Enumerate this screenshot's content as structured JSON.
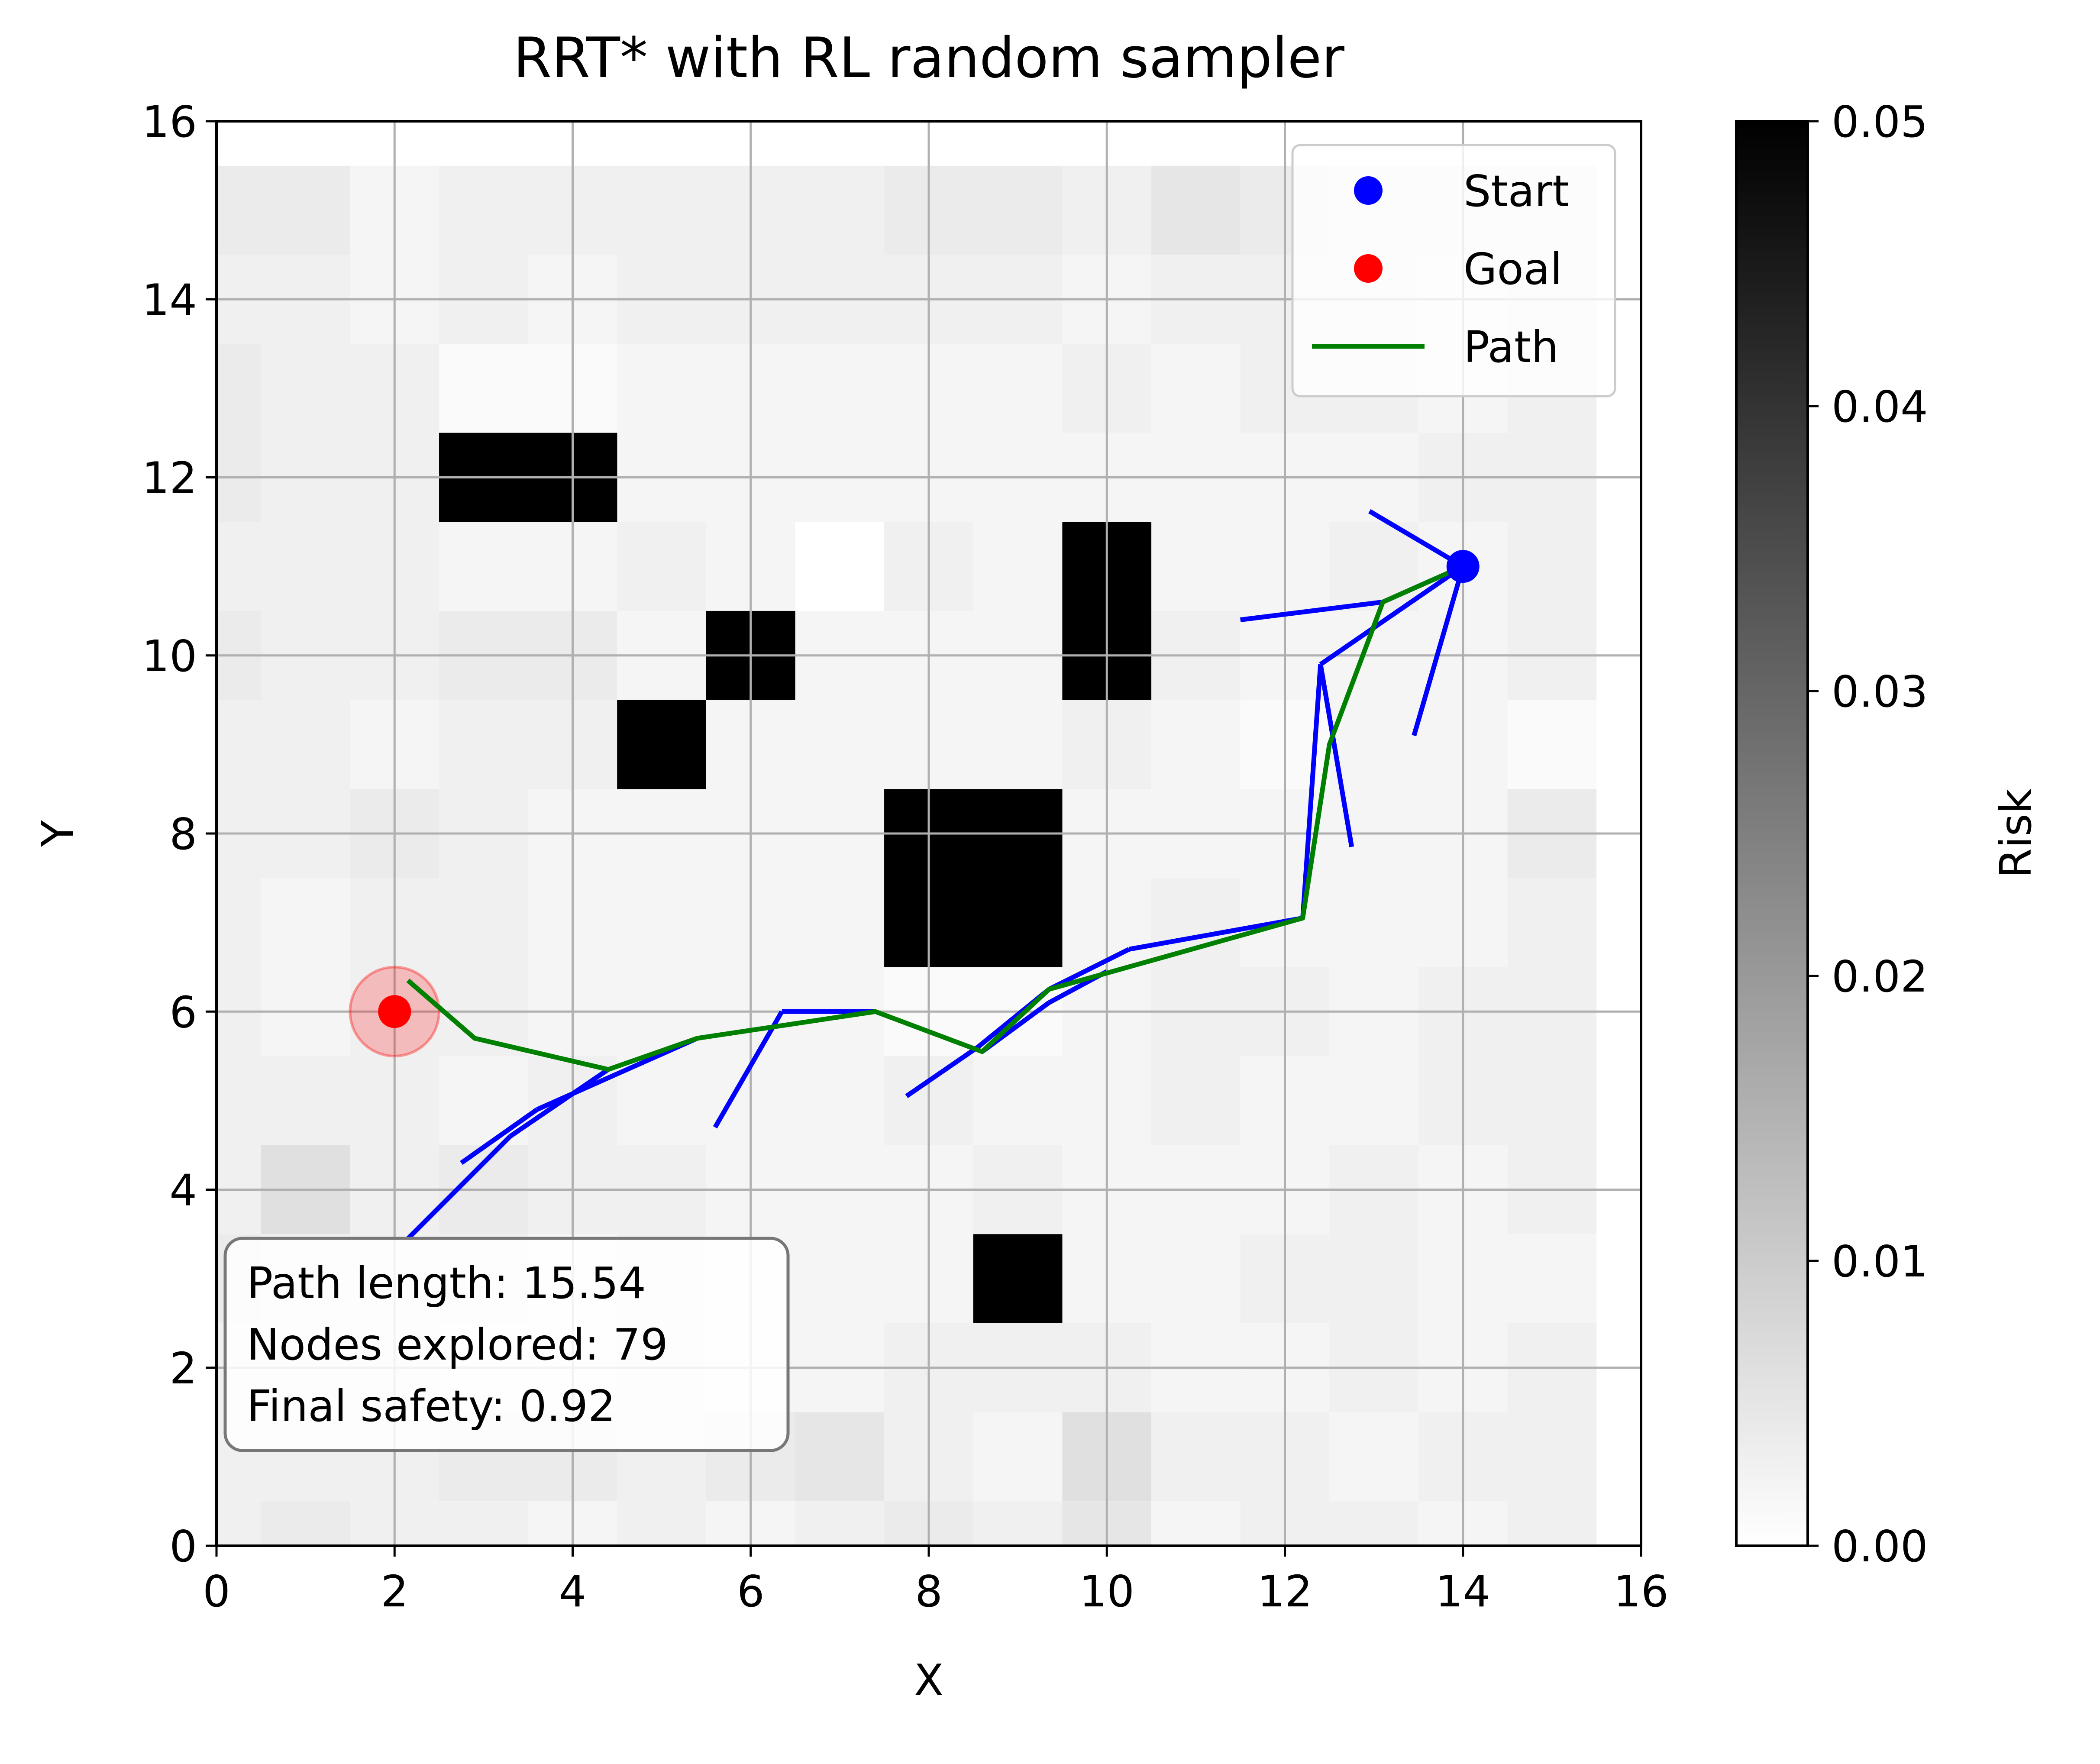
{
  "chart_data": {
    "type": "scatter",
    "title": "RRT* with RL random sampler",
    "xlabel": "X",
    "ylabel": "Y",
    "xlim": [
      0,
      16
    ],
    "ylim": [
      0,
      16
    ],
    "xticks": [
      "0",
      "2",
      "4",
      "6",
      "8",
      "10",
      "12",
      "14",
      "16"
    ],
    "yticks": [
      "0",
      "2",
      "4",
      "6",
      "8",
      "10",
      "12",
      "14",
      "16"
    ],
    "grid": true,
    "legend_position": "top-right",
    "legend": [
      {
        "label": "Start",
        "kind": "marker",
        "color": "#0000ff"
      },
      {
        "label": "Goal",
        "kind": "marker",
        "color": "#ff0000"
      },
      {
        "label": "Path",
        "kind": "line",
        "color": "#008000"
      }
    ],
    "start": [
      14.0,
      11.0
    ],
    "goal": [
      2.0,
      6.0
    ],
    "goal_region_radius": 0.5,
    "obstacles": [
      {
        "x0": 2.5,
        "x1": 4.5,
        "y0": 11.5,
        "y1": 12.5
      },
      {
        "x0": 5.5,
        "x1": 6.5,
        "y0": 9.5,
        "y1": 10.5
      },
      {
        "x0": 4.5,
        "x1": 5.5,
        "y0": 8.5,
        "y1": 9.5
      },
      {
        "x0": 9.5,
        "x1": 10.5,
        "y0": 9.5,
        "y1": 11.5
      },
      {
        "x0": 7.5,
        "x1": 9.5,
        "y0": 6.5,
        "y1": 8.5
      },
      {
        "x0": 8.5,
        "x1": 9.5,
        "y0": 2.5,
        "y1": 3.5
      }
    ],
    "risk_grid": {
      "x0": -0.5,
      "y0": -0.5,
      "cell": 1,
      "rows_bottom_to_top": [
        [
          0.003,
          0.004,
          0.003,
          0.003,
          0.002,
          0.003,
          0.002,
          0.003,
          0.004,
          0.003,
          0.005,
          0.002,
          0.003,
          0.003,
          0.002,
          0.003
        ],
        [
          0.003,
          0.003,
          0.003,
          0.004,
          0.004,
          0.003,
          0.004,
          0.005,
          0.003,
          0.002,
          0.006,
          0.003,
          0.003,
          0.002,
          0.003,
          0.003
        ],
        [
          0.003,
          0.003,
          0.003,
          0.002,
          0.002,
          0.003,
          0.002,
          0.002,
          0.003,
          0.003,
          0.003,
          0.002,
          0.002,
          0.003,
          0.002,
          0.003
        ],
        [
          0.004,
          0.003,
          0.003,
          0.003,
          0.002,
          0.003,
          0.002,
          0.002,
          0.002,
          0.05,
          0.002,
          0.002,
          0.003,
          0.003,
          0.002,
          0.002
        ],
        [
          0.003,
          0.006,
          0.003,
          0.004,
          0.003,
          0.003,
          0.002,
          0.002,
          0.002,
          0.003,
          0.002,
          0.002,
          0.002,
          0.003,
          0.002,
          0.003
        ],
        [
          0.003,
          0.003,
          0.003,
          0.002,
          0.003,
          0.002,
          0.002,
          0.002,
          0.003,
          0.002,
          0.002,
          0.003,
          0.002,
          0.002,
          0.003,
          0.003
        ],
        [
          0.003,
          0.002,
          0.003,
          0.003,
          0.002,
          0.002,
          0.002,
          0.002,
          0.001,
          0.001,
          0.002,
          0.003,
          0.003,
          0.002,
          0.003,
          0.003
        ],
        [
          0.003,
          0.002,
          0.003,
          0.003,
          0.002,
          0.002,
          0.002,
          0.002,
          0.05,
          0.05,
          0.002,
          0.003,
          0.002,
          0.002,
          0.002,
          0.003
        ],
        [
          0.003,
          0.003,
          0.004,
          0.003,
          0.002,
          0.002,
          0.002,
          0.002,
          0.05,
          0.05,
          0.002,
          0.002,
          0.002,
          0.002,
          0.002,
          0.004
        ],
        [
          0.003,
          0.003,
          0.002,
          0.003,
          0.003,
          0.05,
          0.002,
          0.002,
          0.002,
          0.002,
          0.003,
          0.002,
          0.001,
          0.002,
          0.002,
          0.001
        ],
        [
          0.004,
          0.003,
          0.003,
          0.004,
          0.004,
          0.002,
          0.05,
          0.002,
          0.002,
          0.002,
          0.05,
          0.003,
          0.002,
          0.002,
          0.002,
          0.003
        ],
        [
          0.003,
          0.003,
          0.003,
          0.002,
          0.002,
          0.003,
          0.002,
          0.0,
          0.003,
          0.002,
          0.05,
          0.002,
          0.002,
          0.003,
          0.002,
          0.003
        ],
        [
          0.004,
          0.003,
          0.003,
          0.05,
          0.05,
          0.002,
          0.002,
          0.002,
          0.002,
          0.002,
          0.002,
          0.002,
          0.002,
          0.002,
          0.003,
          0.003
        ],
        [
          0.004,
          0.003,
          0.003,
          0.001,
          0.001,
          0.002,
          0.002,
          0.002,
          0.002,
          0.002,
          0.003,
          0.002,
          0.003,
          0.003,
          0.002,
          0.003
        ],
        [
          0.003,
          0.003,
          0.002,
          0.003,
          0.002,
          0.003,
          0.003,
          0.003,
          0.003,
          0.003,
          0.002,
          0.003,
          0.003,
          0.003,
          0.002,
          0.003
        ],
        [
          0.004,
          0.004,
          0.002,
          0.003,
          0.003,
          0.003,
          0.003,
          0.003,
          0.004,
          0.004,
          0.003,
          0.005,
          0.004,
          0.003,
          0.003,
          0.003
        ]
      ]
    },
    "tree_edges": [
      [
        [
          14.0,
          11.0
        ],
        [
          12.95,
          11.62
        ]
      ],
      [
        [
          14.0,
          11.0
        ],
        [
          13.45,
          9.1
        ]
      ],
      [
        [
          14.0,
          11.0
        ],
        [
          13.1,
          10.6
        ]
      ],
      [
        [
          13.1,
          10.6
        ],
        [
          11.5,
          10.4
        ]
      ],
      [
        [
          14.0,
          11.0
        ],
        [
          12.4,
          9.9
        ]
      ],
      [
        [
          12.4,
          9.9
        ],
        [
          12.75,
          7.85
        ]
      ],
      [
        [
          12.4,
          9.9
        ],
        [
          12.2,
          7.05
        ]
      ],
      [
        [
          12.2,
          7.05
        ],
        [
          10.25,
          6.7
        ]
      ],
      [
        [
          10.25,
          6.7
        ],
        [
          9.35,
          6.25
        ]
      ],
      [
        [
          9.35,
          6.25
        ],
        [
          8.55,
          5.6
        ]
      ],
      [
        [
          8.55,
          5.6
        ],
        [
          7.75,
          5.05
        ]
      ],
      [
        [
          8.6,
          5.55
        ],
        [
          9.35,
          6.1
        ]
      ],
      [
        [
          9.35,
          6.1
        ],
        [
          10.0,
          6.45
        ]
      ],
      [
        [
          7.4,
          6.0
        ],
        [
          6.35,
          6.0
        ]
      ],
      [
        [
          6.35,
          6.0
        ],
        [
          5.6,
          4.7
        ]
      ],
      [
        [
          5.4,
          5.7
        ],
        [
          3.6,
          4.9
        ]
      ],
      [
        [
          3.6,
          4.9
        ],
        [
          2.75,
          4.3
        ]
      ],
      [
        [
          4.4,
          5.35
        ],
        [
          3.3,
          4.6
        ]
      ],
      [
        [
          3.3,
          4.6
        ],
        [
          2.15,
          3.45
        ]
      ]
    ],
    "path": [
      [
        14.0,
        11.0
      ],
      [
        13.1,
        10.6
      ],
      [
        12.5,
        9.0
      ],
      [
        12.2,
        7.05
      ],
      [
        9.35,
        6.25
      ],
      [
        8.6,
        5.55
      ],
      [
        7.4,
        6.0
      ],
      [
        5.4,
        5.7
      ],
      [
        4.4,
        5.35
      ],
      [
        2.9,
        5.7
      ],
      [
        2.15,
        6.35
      ]
    ],
    "colorbar": {
      "label": "Risk",
      "range": [
        0.0,
        0.05
      ],
      "ticks": [
        "0.00",
        "0.01",
        "0.02",
        "0.03",
        "0.04",
        "0.05"
      ]
    },
    "annotation": [
      "Path length: 15.54",
      "Nodes explored: 79",
      "Final safety: 0.92"
    ]
  }
}
